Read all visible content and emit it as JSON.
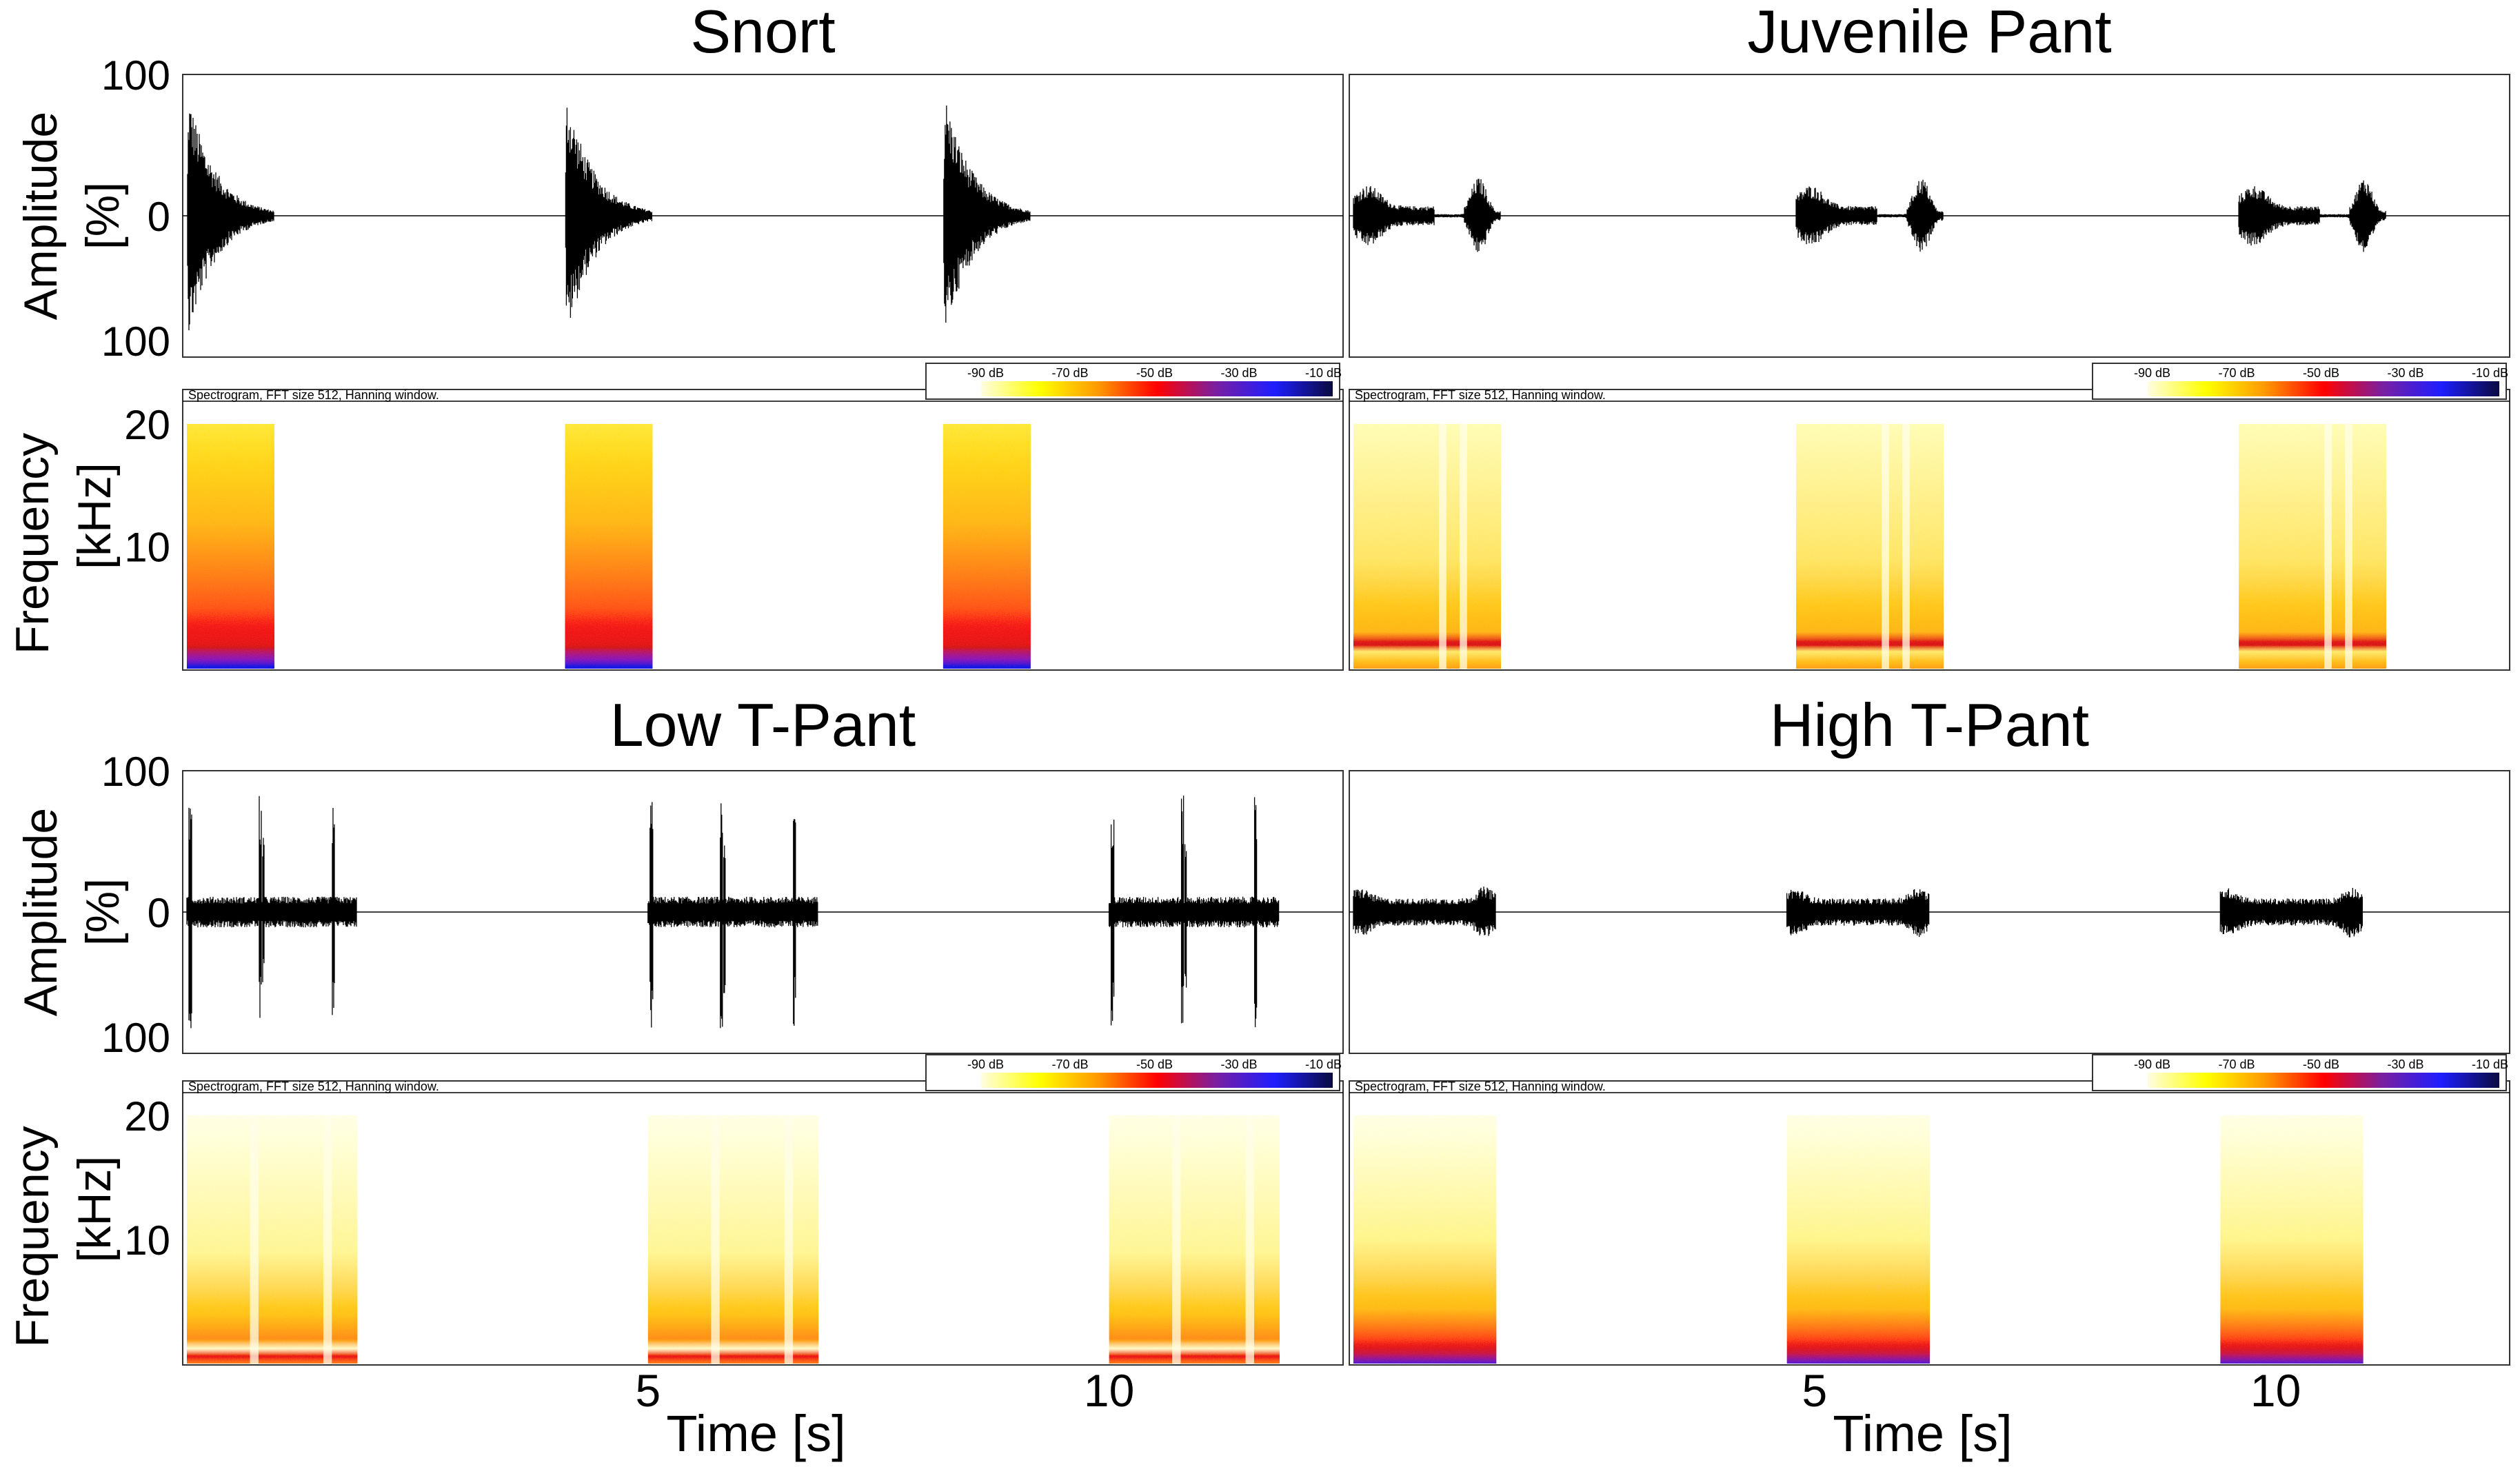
{
  "chart_data": {
    "type": "waveform_spectrogram_grid",
    "time_axis": {
      "xlabel": "Time [s]",
      "ticks": [
        5,
        10
      ],
      "range": [
        0,
        12.5
      ]
    },
    "amplitude_axis": {
      "ylabel_line1": "Amplitude",
      "ylabel_line2": "[%]",
      "tick_labels": [
        "100",
        "0",
        "100"
      ],
      "range": [
        -100,
        100
      ]
    },
    "frequency_axis": {
      "ylabel_line1": "Frequency",
      "ylabel_line2": "[kHz]",
      "ticks": [
        20,
        10
      ],
      "range": [
        0,
        20
      ]
    },
    "spectrogram_caption": "Spectrogram, FFT size 512, Hanning window.",
    "colorbar_labels": [
      "-90 dB",
      "-70 dB",
      "-50 dB",
      "-30 dB",
      "-10 dB"
    ],
    "colorbar_colors": [
      "#fffde0",
      "#ffff00",
      "#ff9900",
      "#ff0000",
      "#7a1fa0",
      "#1e1eff",
      "#0a0a40"
    ],
    "panels": [
      {
        "title": "Snort",
        "calls": [
          0,
          4.1,
          8.2
        ],
        "call_duration": 0.95,
        "pattern": "snort",
        "env_peak": 95,
        "spec_intensity": "high"
      },
      {
        "title": "Juvenile Pant",
        "calls": [
          0,
          4.8,
          9.6
        ],
        "call_duration": 1.6,
        "pattern": "pant_juvenile",
        "env_peak": 28,
        "spec_intensity": "medium"
      },
      {
        "title": "Low T-Pant",
        "calls": [
          0,
          5.0,
          10.0
        ],
        "call_duration": 1.85,
        "pattern": "pant_low",
        "env_peak": 40,
        "spec_intensity": "medium"
      },
      {
        "title": "High T-Pant",
        "calls": [
          0,
          4.7,
          9.4
        ],
        "call_duration": 1.55,
        "pattern": "pant_high",
        "env_peak": 22,
        "spec_intensity": "medium"
      }
    ]
  }
}
